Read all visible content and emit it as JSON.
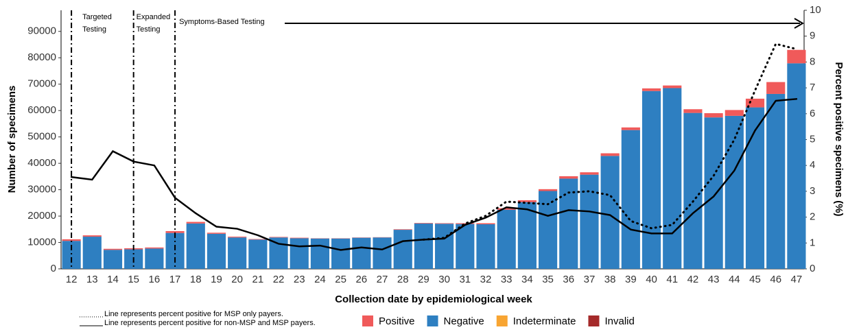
{
  "chart_data": {
    "type": "bar",
    "x_label": "Collection date by epidemiological week",
    "y_label": "Number of specimens",
    "y2_label": "Percent positive specimens (%)",
    "categories": [
      "12",
      "13",
      "14",
      "15",
      "16",
      "17",
      "18",
      "19",
      "20",
      "21",
      "22",
      "23",
      "24",
      "25",
      "26",
      "27",
      "28",
      "29",
      "30",
      "31",
      "32",
      "33",
      "34",
      "35",
      "36",
      "37",
      "38",
      "39",
      "40",
      "41",
      "42",
      "43",
      "44",
      "45",
      "46",
      "47"
    ],
    "series": [
      {
        "name": "Positive",
        "color": "#f05a5a",
        "values": [
          600,
          500,
          400,
          400,
          400,
          700,
          600,
          400,
          300,
          200,
          200,
          200,
          100,
          100,
          100,
          100,
          200,
          200,
          200,
          300,
          400,
          600,
          700,
          700,
          900,
          900,
          1000,
          1000,
          1000,
          1000,
          1400,
          1600,
          2200,
          3300,
          4500,
          5100
        ]
      },
      {
        "name": "Negative",
        "color": "#2e7fc1",
        "values": [
          10600,
          12200,
          7200,
          7400,
          7700,
          13600,
          17200,
          13300,
          11900,
          11100,
          11900,
          11600,
          11500,
          11500,
          11800,
          11900,
          14800,
          17200,
          17100,
          17000,
          16900,
          22400,
          25300,
          29500,
          34200,
          35700,
          42800,
          52600,
          67400,
          68500,
          59100,
          57400,
          58000,
          61200,
          66300,
          77900
        ]
      },
      {
        "name": "Indeterminate",
        "color": "#f8a532",
        "values": [
          0,
          0,
          0,
          0,
          0,
          0,
          0,
          0,
          0,
          0,
          0,
          0,
          0,
          0,
          0,
          0,
          0,
          0,
          0,
          0,
          0,
          0,
          0,
          0,
          0,
          0,
          0,
          0,
          0,
          0,
          0,
          0,
          0,
          0,
          0,
          0
        ]
      },
      {
        "name": "Invalid",
        "color": "#a52a2a",
        "values": [
          0,
          0,
          0,
          0,
          0,
          0,
          0,
          0,
          0,
          0,
          0,
          0,
          0,
          0,
          0,
          0,
          0,
          0,
          0,
          0,
          0,
          0,
          0,
          0,
          0,
          0,
          0,
          0,
          0,
          0,
          0,
          0,
          0,
          0,
          0,
          0
        ]
      },
      {
        "name": "Line represents percent positive for MSP only payers.",
        "type": "line",
        "axis": "y2",
        "style": "dotted",
        "color": "#000000",
        "values": [
          null,
          null,
          null,
          null,
          null,
          null,
          null,
          null,
          null,
          null,
          null,
          null,
          null,
          null,
          null,
          null,
          null,
          1.13,
          1.2,
          1.75,
          2.05,
          2.6,
          2.55,
          2.5,
          2.95,
          3.0,
          2.85,
          1.85,
          1.57,
          1.7,
          2.6,
          3.6,
          5.0,
          6.9,
          8.7,
          8.5
        ]
      },
      {
        "name": "Line represents percent positive for non-MSP and MSP payers.",
        "type": "line",
        "axis": "y2",
        "style": "solid",
        "color": "#000000",
        "values": [
          3.55,
          3.45,
          4.55,
          4.15,
          4.0,
          2.75,
          2.15,
          1.63,
          1.55,
          1.3,
          0.97,
          0.87,
          0.9,
          0.73,
          0.83,
          0.75,
          1.07,
          1.13,
          1.17,
          1.7,
          1.98,
          2.38,
          2.3,
          2.05,
          2.27,
          2.22,
          2.08,
          1.52,
          1.37,
          1.37,
          2.15,
          2.8,
          3.8,
          5.35,
          6.5,
          6.57
        ]
      }
    ],
    "annotations": [
      [
        "Targeted",
        "Testing"
      ],
      [
        "Expanded",
        "Testing"
      ],
      [
        "Symptoms-Based Testing"
      ]
    ],
    "ylim": [
      0,
      98000
    ],
    "yticks": [
      0,
      10000,
      20000,
      30000,
      40000,
      50000,
      60000,
      70000,
      80000,
      90000
    ],
    "y2lim": [
      0,
      10
    ],
    "y2ticks": [
      0,
      1,
      2,
      3,
      4,
      5,
      6,
      7,
      8,
      9,
      10
    ],
    "grid": false
  }
}
